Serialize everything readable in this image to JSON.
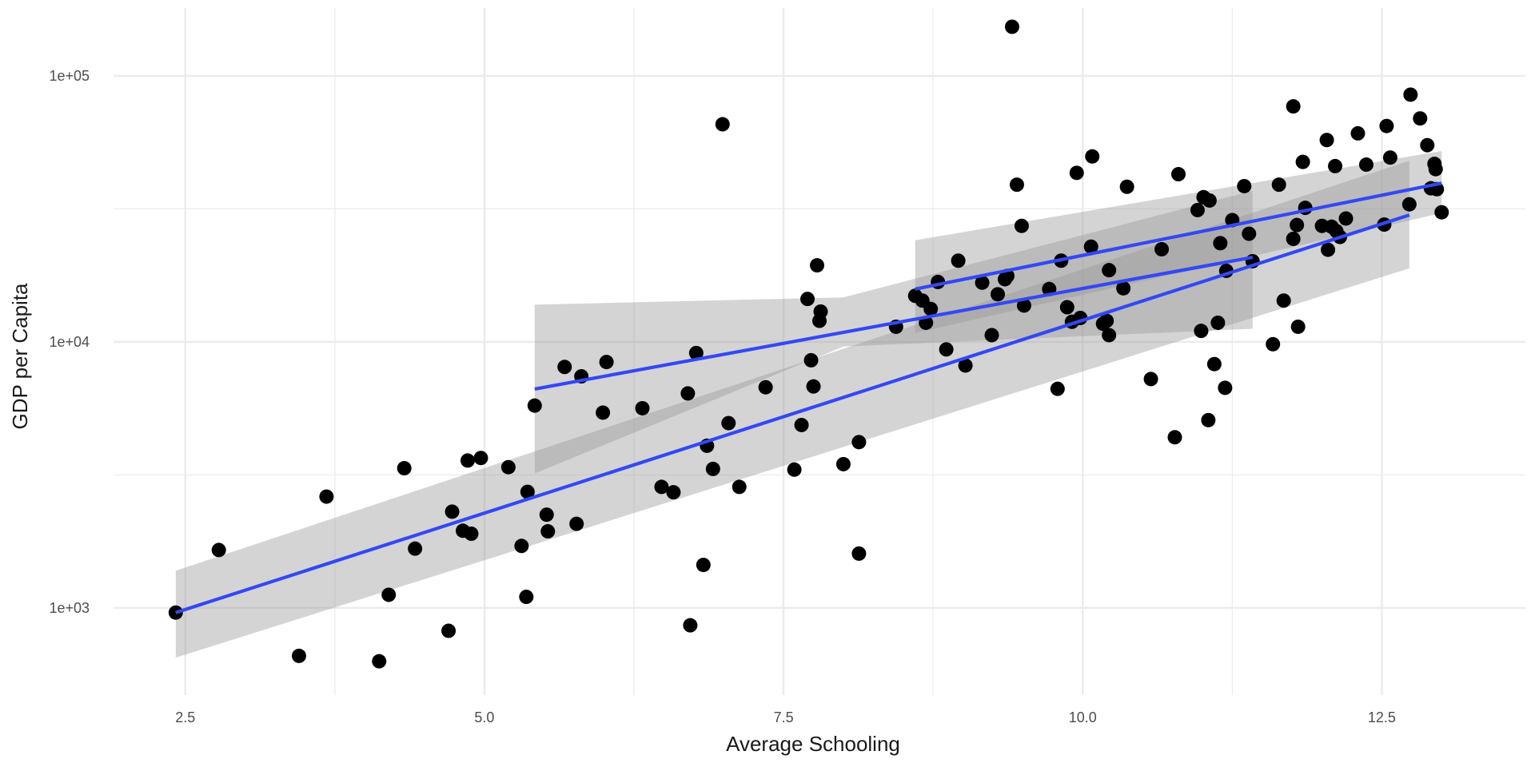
{
  "chart_data": {
    "type": "scatter",
    "title": "",
    "xlabel": "Average Schooling",
    "ylabel": "GDP per Capita",
    "x_scale": "linear",
    "y_scale": "log10",
    "xlim": [
      1.9,
      13.7
    ],
    "ylim": [
      470,
      180000
    ],
    "x_ticks": [
      2.5,
      5.0,
      7.5,
      10.0,
      12.5
    ],
    "x_tick_labels": [
      "2.5",
      "5.0",
      "7.5",
      "10.0",
      "12.5"
    ],
    "y_ticks": [
      1000,
      10000,
      100000
    ],
    "y_tick_labels": [
      "1e+03",
      "1e+04",
      "1e+05"
    ],
    "grid": true,
    "colors": {
      "points": "#000000",
      "fit_line": "#3348f5",
      "confidence_band": "#999999"
    },
    "points": [
      [
        2.42,
        960
      ],
      [
        2.78,
        1650
      ],
      [
        3.45,
        660
      ],
      [
        3.68,
        2620
      ],
      [
        4.12,
        630
      ],
      [
        4.2,
        1120
      ],
      [
        4.33,
        3350
      ],
      [
        4.42,
        1670
      ],
      [
        4.7,
        820
      ],
      [
        4.73,
        2300
      ],
      [
        4.82,
        1950
      ],
      [
        4.86,
        3580
      ],
      [
        4.89,
        1900
      ],
      [
        4.97,
        3660
      ],
      [
        5.2,
        3380
      ],
      [
        5.31,
        1710
      ],
      [
        5.35,
        1100
      ],
      [
        5.36,
        2730
      ],
      [
        5.42,
        5760
      ],
      [
        5.52,
        2240
      ],
      [
        5.53,
        1940
      ],
      [
        5.67,
        8050
      ],
      [
        5.77,
        2070
      ],
      [
        5.81,
        7420
      ],
      [
        5.99,
        5420
      ],
      [
        6.02,
        8400
      ],
      [
        6.32,
        5630
      ],
      [
        6.48,
        2850
      ],
      [
        6.58,
        2720
      ],
      [
        6.7,
        6400
      ],
      [
        6.72,
        860
      ],
      [
        6.77,
        9080
      ],
      [
        6.83,
        1450
      ],
      [
        6.86,
        4070
      ],
      [
        6.91,
        3330
      ],
      [
        6.99,
        65800
      ],
      [
        7.04,
        4950
      ],
      [
        7.13,
        2850
      ],
      [
        7.35,
        6750
      ],
      [
        7.59,
        3310
      ],
      [
        7.65,
        4870
      ],
      [
        7.7,
        14500
      ],
      [
        7.73,
        8530
      ],
      [
        7.75,
        6800
      ],
      [
        7.78,
        19400
      ],
      [
        7.8,
        12000
      ],
      [
        7.81,
        13000
      ],
      [
        8.0,
        3470
      ],
      [
        8.13,
        4200
      ],
      [
        8.13,
        1600
      ],
      [
        8.44,
        11400
      ],
      [
        8.6,
        14900
      ],
      [
        8.66,
        14300
      ],
      [
        8.69,
        11800
      ],
      [
        8.73,
        13300
      ],
      [
        8.79,
        16800
      ],
      [
        8.86,
        9370
      ],
      [
        8.96,
        20200
      ],
      [
        9.02,
        8150
      ],
      [
        9.16,
        16700
      ],
      [
        9.24,
        10600
      ],
      [
        9.29,
        15100
      ],
      [
        9.35,
        17200
      ],
      [
        9.37,
        17700
      ],
      [
        9.41,
        153000
      ],
      [
        9.45,
        39000
      ],
      [
        9.49,
        27300
      ],
      [
        9.51,
        13700
      ],
      [
        9.72,
        15800
      ],
      [
        9.79,
        6660
      ],
      [
        9.82,
        20200
      ],
      [
        9.87,
        13500
      ],
      [
        9.91,
        11900
      ],
      [
        9.95,
        43200
      ],
      [
        9.98,
        12300
      ],
      [
        10.07,
        22800
      ],
      [
        10.08,
        49800
      ],
      [
        10.17,
        11700
      ],
      [
        10.2,
        12000
      ],
      [
        10.22,
        18600
      ],
      [
        10.22,
        10600
      ],
      [
        10.34,
        15900
      ],
      [
        10.37,
        38300
      ],
      [
        10.57,
        7250
      ],
      [
        10.66,
        22300
      ],
      [
        10.77,
        4380
      ],
      [
        10.8,
        42700
      ],
      [
        10.96,
        31300
      ],
      [
        10.99,
        11000
      ],
      [
        11.01,
        35000
      ],
      [
        11.05,
        5080
      ],
      [
        11.06,
        34000
      ],
      [
        11.1,
        8250
      ],
      [
        11.13,
        11800
      ],
      [
        11.15,
        23500
      ],
      [
        11.19,
        6720
      ],
      [
        11.2,
        18500
      ],
      [
        11.25,
        28700
      ],
      [
        11.35,
        38500
      ],
      [
        11.39,
        25500
      ],
      [
        11.42,
        20100
      ],
      [
        11.59,
        9800
      ],
      [
        11.64,
        39000
      ],
      [
        11.68,
        14300
      ],
      [
        11.76,
        76800
      ],
      [
        11.76,
        24400
      ],
      [
        11.79,
        27500
      ],
      [
        11.8,
        11400
      ],
      [
        11.84,
        47500
      ],
      [
        11.86,
        31900
      ],
      [
        12.0,
        27300
      ],
      [
        12.04,
        57400
      ],
      [
        12.05,
        22200
      ],
      [
        12.08,
        27100
      ],
      [
        12.11,
        45800
      ],
      [
        12.12,
        26100
      ],
      [
        12.15,
        24800
      ],
      [
        12.2,
        29100
      ],
      [
        12.3,
        60800
      ],
      [
        12.37,
        46400
      ],
      [
        12.52,
        27600
      ],
      [
        12.54,
        64800
      ],
      [
        12.57,
        49300
      ],
      [
        12.73,
        32900
      ],
      [
        12.74,
        85000
      ],
      [
        12.82,
        69200
      ],
      [
        12.88,
        54900
      ],
      [
        12.91,
        37800
      ],
      [
        12.94,
        46700
      ],
      [
        12.95,
        44600
      ],
      [
        12.96,
        37500
      ],
      [
        13.0,
        30700
      ]
    ],
    "fit_lines": [
      {
        "x": [
          2.42,
          12.73
        ],
        "y": [
          960,
          30000
        ]
      },
      {
        "x": [
          5.42,
          11.42
        ],
        "y": [
          6650,
          20800
        ]
      },
      {
        "x": [
          8.6,
          13.0
        ],
        "y": [
          15800,
          39500
        ]
      }
    ],
    "confidence_bands": [
      {
        "x": [
          2.42,
          12.73
        ],
        "upper": [
          1380,
          48000
        ],
        "lower": [
          650,
          18900
        ]
      },
      {
        "x": [
          5.42,
          8.0,
          11.42
        ],
        "upper": [
          13800,
          14700,
          37000
        ],
        "lower": [
          3200,
          9600,
          11200
        ]
      },
      {
        "x": [
          8.6,
          13.0
        ],
        "upper": [
          24100,
          52200
        ],
        "lower": [
          10800,
          30500
        ]
      }
    ]
  }
}
